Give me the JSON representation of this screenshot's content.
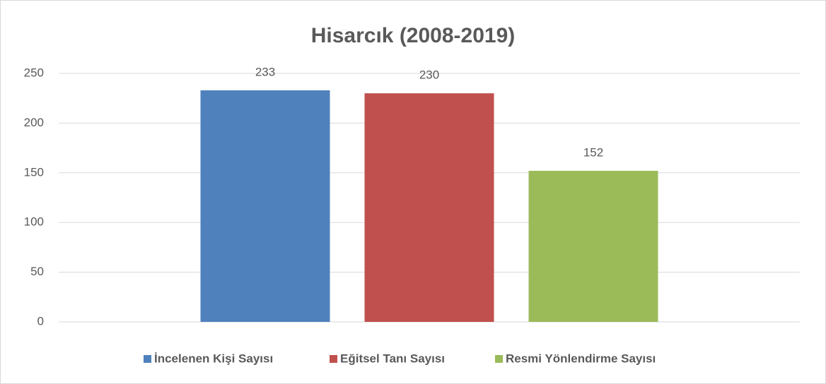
{
  "chart_data": {
    "type": "bar",
    "title": "Hisarcık (2008-2019)",
    "categories": [
      null
    ],
    "series": [
      {
        "name": "İncelenen Kişi Sayısı",
        "color": "#4f81bd",
        "values": [
          233
        ]
      },
      {
        "name": "Eğitsel Tanı Sayısı",
        "color": "#c0504d",
        "values": [
          230
        ]
      },
      {
        "name": "Resmi Yönlendirme Sayısı",
        "color": "#9bbb59",
        "values": [
          152
        ]
      }
    ],
    "ylim": [
      0,
      250
    ],
    "yticks": [
      0,
      50,
      100,
      150,
      200,
      250
    ],
    "grid": true,
    "legend": "bottom"
  }
}
